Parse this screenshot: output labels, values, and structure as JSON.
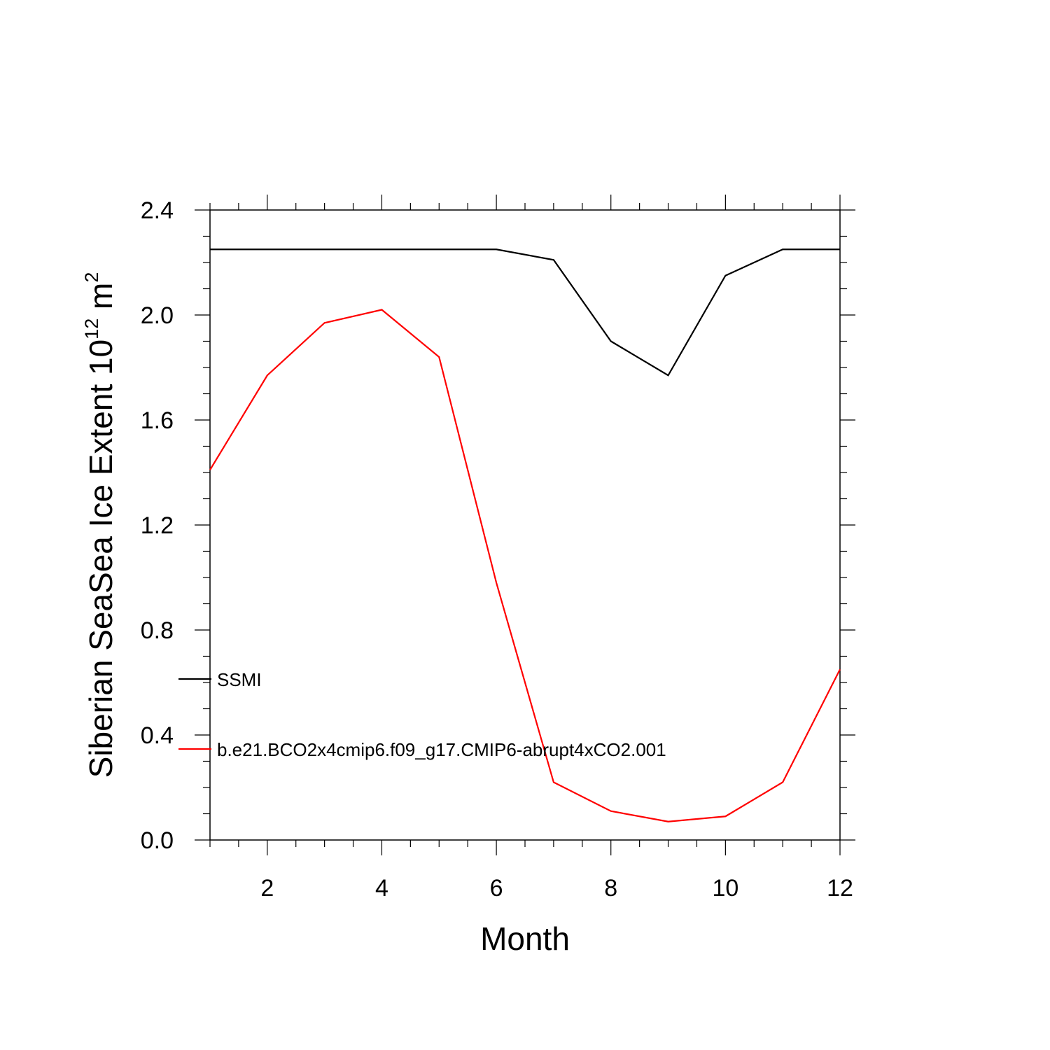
{
  "chart_data": {
    "type": "line",
    "xlabel": "Month",
    "ylabel": "Siberian SeaSea Ice Extent 10",
    "ylabel_exponent": "12",
    "ylabel_unit": " m",
    "ylabel_unit_exponent": "2",
    "xlim": [
      1,
      12
    ],
    "ylim": [
      0.0,
      2.4
    ],
    "x_ticks": [
      "2",
      "4",
      "6",
      "8",
      "10",
      "12"
    ],
    "y_ticks": [
      "0.0",
      "0.4",
      "0.8",
      "1.2",
      "1.6",
      "2.0",
      "2.4"
    ],
    "x": [
      1,
      2,
      3,
      4,
      5,
      6,
      7,
      8,
      9,
      10,
      11,
      12
    ],
    "grid": false,
    "legend_position": "left-inside",
    "series": [
      {
        "name": "SSMI",
        "color": "#000000",
        "values": [
          2.25,
          2.25,
          2.25,
          2.25,
          2.25,
          2.25,
          2.21,
          1.9,
          1.77,
          2.15,
          2.25,
          2.25
        ]
      },
      {
        "name": "b.e21.BCO2x4cmip6.f09_g17.CMIP6-abrupt4xCO2.001",
        "color": "#ff0000",
        "values": [
          1.41,
          1.77,
          1.97,
          2.02,
          1.84,
          0.98,
          0.22,
          0.11,
          0.07,
          0.09,
          0.22,
          0.65
        ]
      }
    ]
  }
}
